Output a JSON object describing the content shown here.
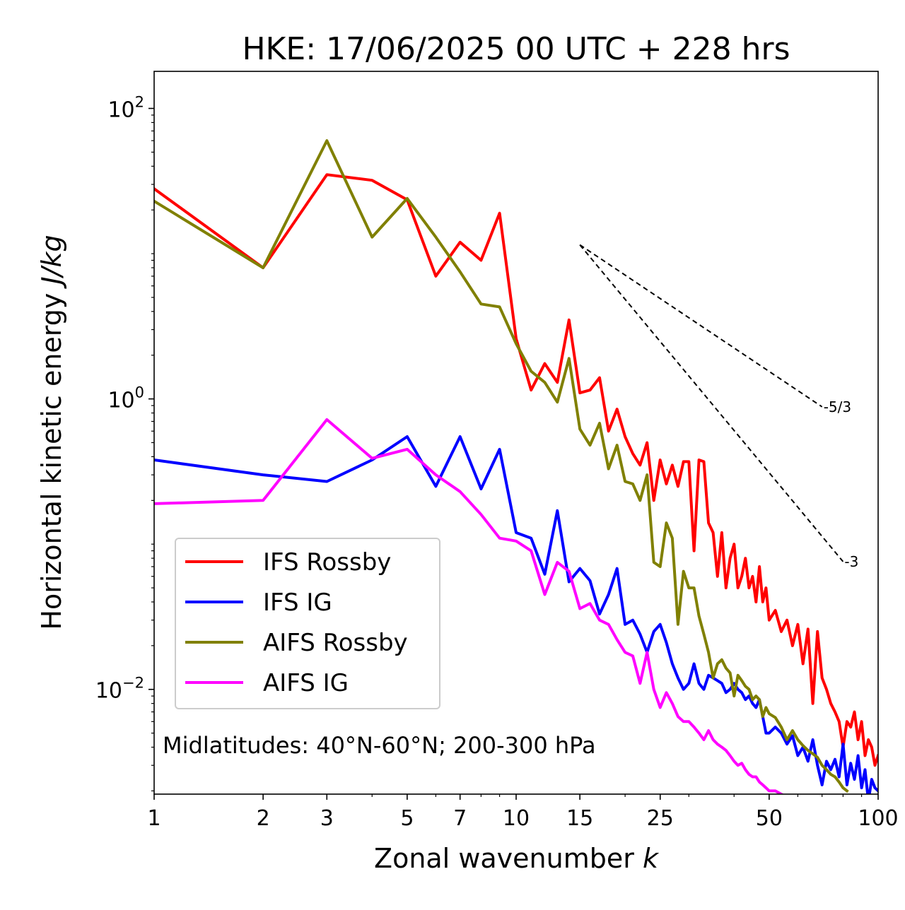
{
  "chart_data": {
    "type": "line",
    "title": "HKE: 17/06/2025 00 UTC + 228 hrs",
    "xlabel_main": "Zonal wavenumber ",
    "xlabel_var": "k",
    "ylabel_main": "Horizontal kinetic energy ",
    "ylabel_unit": "J/kg",
    "x_scale": "log",
    "y_scale": "log",
    "xlim": [
      1,
      100
    ],
    "ylim": [
      0.0019,
      180
    ],
    "x_ticks": [
      1,
      2,
      3,
      5,
      7,
      10,
      15,
      25,
      50,
      100
    ],
    "x_tick_labels": [
      "1",
      "2",
      "3",
      "5",
      "7",
      "10",
      "15",
      "25",
      "50",
      "100"
    ],
    "y_ticks": [
      {
        "value": 100,
        "base": "10",
        "exp": "2"
      },
      {
        "value": 1,
        "base": "10",
        "exp": "0"
      },
      {
        "value": 0.01,
        "base": "10",
        "exp": "−2"
      }
    ],
    "grid": false,
    "legend_position": "lower-left",
    "annotation": "Midlatitudes: 40°N-60°N; 200-300 hPa",
    "reference_slopes": [
      {
        "label": "-5/3",
        "slope": -1.6667,
        "x_start": 15,
        "x_end": 70,
        "y_start": 11.5
      },
      {
        "label": "-3",
        "slope": -3,
        "x_start": 15,
        "x_end": 80,
        "y_start": 11.5
      }
    ],
    "series": [
      {
        "name": "IFS Rossby",
        "color": "#ff0000",
        "x": [
          1,
          2,
          3,
          4,
          5,
          6,
          7,
          8,
          9,
          10,
          11,
          12,
          13,
          14,
          15,
          16,
          17,
          18,
          19,
          20,
          21,
          22,
          23,
          24,
          25,
          26,
          27,
          28,
          29,
          30,
          31,
          32,
          33,
          34,
          35,
          36,
          37,
          38,
          39,
          40,
          41,
          42,
          43,
          44,
          45,
          46,
          47,
          48,
          49,
          50,
          52,
          54,
          56,
          58,
          60,
          62,
          64,
          66,
          68,
          70,
          72,
          74,
          76,
          78,
          80,
          82,
          84,
          86,
          88,
          90,
          92,
          94,
          96,
          98,
          100
        ],
        "values": [
          28,
          8,
          35,
          32,
          23.5,
          7,
          12,
          9,
          19,
          2.6,
          1.15,
          1.75,
          1.3,
          3.5,
          1.1,
          1.15,
          1.4,
          0.6,
          0.85,
          0.55,
          0.42,
          0.35,
          0.5,
          0.2,
          0.38,
          0.26,
          0.35,
          0.25,
          0.37,
          0.37,
          0.09,
          0.38,
          0.37,
          0.14,
          0.12,
          0.06,
          0.12,
          0.05,
          0.08,
          0.1,
          0.05,
          0.06,
          0.08,
          0.05,
          0.06,
          0.04,
          0.07,
          0.04,
          0.05,
          0.03,
          0.035,
          0.025,
          0.03,
          0.02,
          0.028,
          0.015,
          0.026,
          0.008,
          0.025,
          0.012,
          0.01,
          0.008,
          0.007,
          0.006,
          0.004,
          0.006,
          0.0055,
          0.007,
          0.0045,
          0.006,
          0.0035,
          0.0045,
          0.004,
          0.003,
          0.0035
        ]
      },
      {
        "name": "IFS IG",
        "color": "#0000ff",
        "x": [
          1,
          2,
          3,
          4,
          5,
          6,
          7,
          8,
          9,
          10,
          11,
          12,
          13,
          14,
          15,
          16,
          17,
          18,
          19,
          20,
          21,
          22,
          23,
          24,
          25,
          26,
          27,
          28,
          29,
          30,
          31,
          32,
          33,
          34,
          35,
          36,
          37,
          38,
          39,
          40,
          41,
          42,
          43,
          44,
          45,
          46,
          47,
          48,
          49,
          50,
          52,
          54,
          56,
          58,
          60,
          62,
          64,
          66,
          68,
          70,
          72,
          74,
          76,
          78,
          80,
          82,
          84,
          86,
          88,
          90,
          92,
          94,
          96,
          98,
          100
        ],
        "values": [
          0.38,
          0.3,
          0.27,
          0.38,
          0.55,
          0.25,
          0.55,
          0.24,
          0.45,
          0.12,
          0.11,
          0.062,
          0.17,
          0.055,
          0.068,
          0.056,
          0.033,
          0.045,
          0.068,
          0.028,
          0.03,
          0.024,
          0.018,
          0.025,
          0.028,
          0.021,
          0.015,
          0.012,
          0.01,
          0.011,
          0.015,
          0.011,
          0.01,
          0.0125,
          0.012,
          0.0115,
          0.011,
          0.0095,
          0.01,
          0.011,
          0.01,
          0.0095,
          0.0085,
          0.009,
          0.008,
          0.0075,
          0.0085,
          0.0065,
          0.005,
          0.005,
          0.0055,
          0.005,
          0.0042,
          0.0048,
          0.0035,
          0.004,
          0.0032,
          0.0045,
          0.003,
          0.0022,
          0.0032,
          0.0028,
          0.0033,
          0.0025,
          0.0042,
          0.0022,
          0.0031,
          0.0024,
          0.0035,
          0.0021,
          0.0028,
          0.0017,
          0.0024,
          0.0021,
          0.002
        ]
      },
      {
        "name": "AIFS Rossby",
        "color": "#808000",
        "x": [
          1,
          2,
          3,
          4,
          5,
          6,
          7,
          8,
          9,
          10,
          11,
          12,
          13,
          14,
          15,
          16,
          17,
          18,
          19,
          20,
          21,
          22,
          23,
          24,
          25,
          26,
          27,
          28,
          29,
          30,
          31,
          32,
          33,
          34,
          35,
          36,
          37,
          38,
          39,
          40,
          41,
          42,
          43,
          44,
          45,
          46,
          47,
          48,
          49,
          50,
          52,
          54,
          56,
          58,
          60,
          62,
          64,
          66,
          68,
          70,
          72,
          74,
          76,
          78,
          80,
          82
        ],
        "values": [
          23,
          8,
          60,
          13,
          24,
          13,
          7.5,
          4.5,
          4.3,
          2.4,
          1.55,
          1.3,
          0.95,
          1.9,
          0.62,
          0.48,
          0.68,
          0.33,
          0.48,
          0.27,
          0.26,
          0.2,
          0.3,
          0.075,
          0.07,
          0.14,
          0.11,
          0.028,
          0.065,
          0.05,
          0.05,
          0.032,
          0.024,
          0.018,
          0.012,
          0.015,
          0.016,
          0.014,
          0.013,
          0.009,
          0.0125,
          0.0115,
          0.0105,
          0.01,
          0.0085,
          0.009,
          0.0085,
          0.0065,
          0.0075,
          0.0068,
          0.0064,
          0.0055,
          0.0045,
          0.0052,
          0.0045,
          0.0041,
          0.0038,
          0.0036,
          0.0034,
          0.003,
          0.0028,
          0.0026,
          0.0025,
          0.0023,
          0.0021,
          0.002
        ]
      },
      {
        "name": "AIFS IG",
        "color": "#ff00ff",
        "x": [
          1,
          2,
          3,
          4,
          5,
          6,
          7,
          8,
          9,
          10,
          11,
          12,
          13,
          14,
          15,
          16,
          17,
          18,
          19,
          20,
          21,
          22,
          23,
          24,
          25,
          26,
          27,
          28,
          29,
          30,
          31,
          32,
          33,
          34,
          35,
          36,
          37,
          38,
          39,
          40,
          41,
          42,
          43,
          44,
          45,
          46,
          47,
          48,
          49,
          50,
          52,
          54,
          56,
          58,
          60,
          62
        ],
        "values": [
          0.19,
          0.2,
          0.72,
          0.39,
          0.45,
          0.3,
          0.23,
          0.16,
          0.11,
          0.105,
          0.09,
          0.045,
          0.075,
          0.065,
          0.036,
          0.039,
          0.03,
          0.028,
          0.022,
          0.018,
          0.017,
          0.011,
          0.018,
          0.01,
          0.0075,
          0.0095,
          0.008,
          0.0065,
          0.006,
          0.006,
          0.0055,
          0.005,
          0.0045,
          0.0052,
          0.0045,
          0.0042,
          0.004,
          0.0038,
          0.0035,
          0.0032,
          0.003,
          0.0031,
          0.0028,
          0.0026,
          0.0025,
          0.0025,
          0.0023,
          0.0022,
          0.0021,
          0.002,
          0.002,
          0.0019,
          0.0018,
          0.0017,
          0.0017,
          0.0018
        ]
      }
    ]
  }
}
